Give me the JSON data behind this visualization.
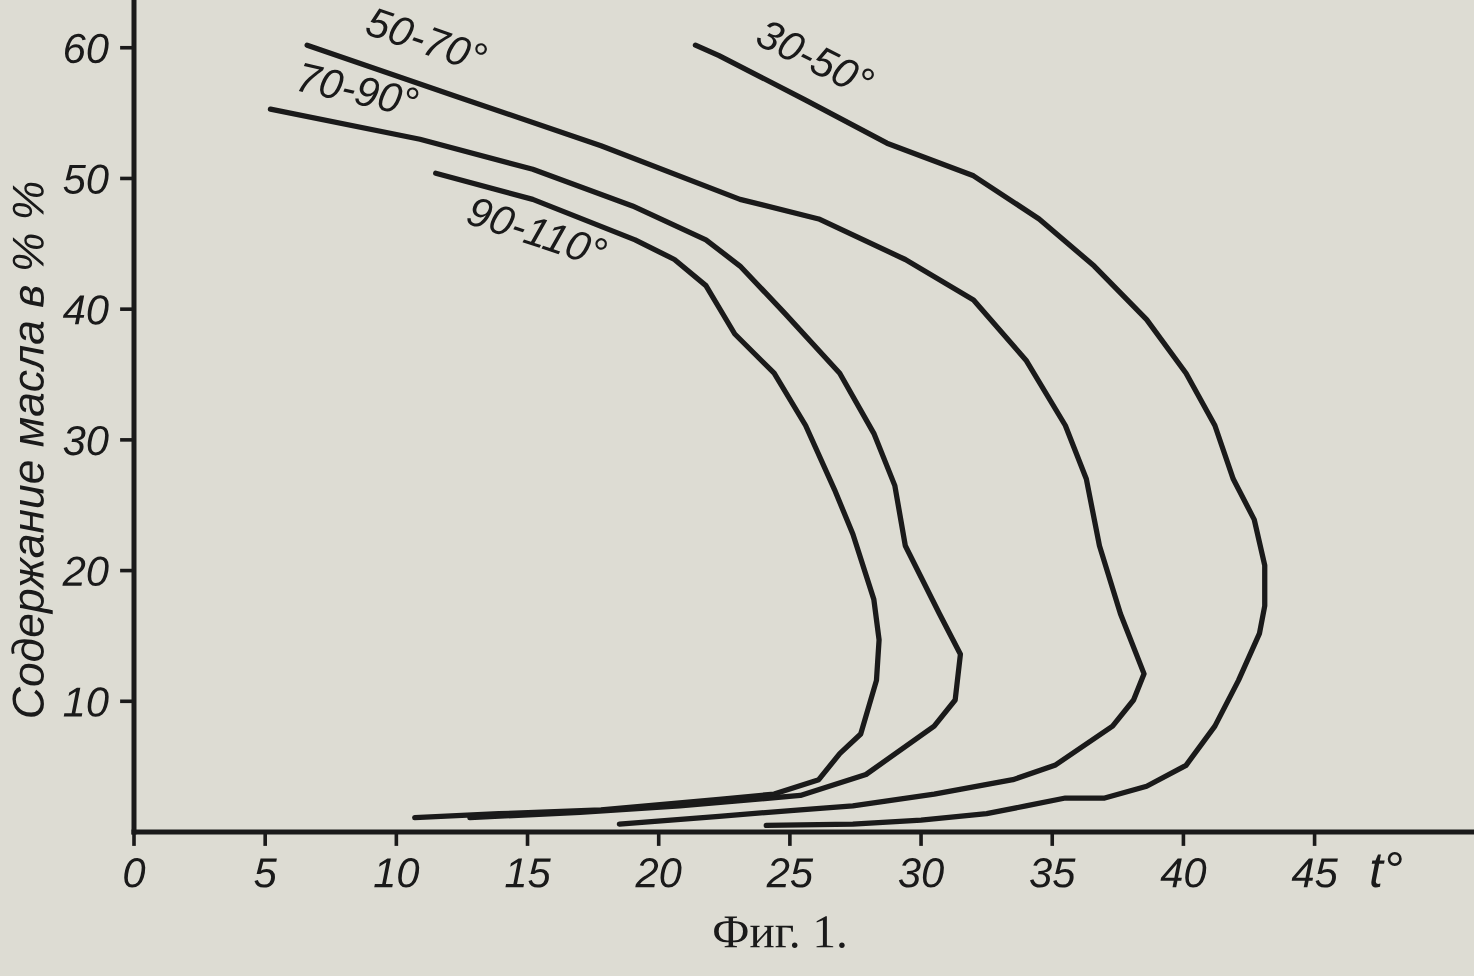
{
  "chart_data": {
    "type": "line",
    "xlabel": "t°",
    "ylabel": "Содержание масла в % %",
    "annotations": [
      "Фиг. 1."
    ],
    "xlim": [
      0,
      51
    ],
    "ylim": [
      0,
      63.5
    ],
    "xticks": [
      0,
      5,
      10,
      15,
      20,
      25,
      30,
      35,
      40,
      45
    ],
    "yticks": [
      10,
      20,
      30,
      40,
      50,
      60
    ],
    "line_style": "solid",
    "series": [
      {
        "name": "30-50°",
        "color": "#1a1a1a",
        "x": [
          21.4,
          22.3,
          25.6,
          28.7,
          32.0,
          34.5,
          36.6,
          38.6,
          40.1,
          41.2,
          41.9,
          42.7,
          43.1,
          43.1,
          42.9,
          42.1,
          41.2,
          40.1,
          38.6,
          37.0,
          35.5,
          34.0,
          32.5,
          30.0,
          27.4,
          24.1
        ],
        "values": [
          60.2,
          59.4,
          56.0,
          52.7,
          50.2,
          46.9,
          43.3,
          39.2,
          35.1,
          31.1,
          27.0,
          23.9,
          20.4,
          17.3,
          15.2,
          11.6,
          8.1,
          5.1,
          3.5,
          2.6,
          2.6,
          2.0,
          1.4,
          0.9,
          0.6,
          0.5
        ]
      },
      {
        "name": "50-70°",
        "color": "#1a1a1a",
        "x": [
          6.6,
          12.4,
          17.8,
          23.1,
          26.1,
          29.4,
          32.0,
          34.0,
          35.5,
          36.3,
          36.8,
          37.6,
          38.5,
          38.1,
          37.3,
          35.1,
          33.5,
          30.5,
          27.4,
          25.4,
          22.3,
          18.5
        ],
        "values": [
          60.2,
          56.2,
          52.5,
          48.4,
          46.9,
          43.8,
          40.7,
          36.1,
          31.1,
          27.0,
          21.9,
          16.7,
          12.1,
          10.1,
          8.1,
          5.1,
          4.0,
          2.9,
          2.0,
          1.7,
          1.2,
          0.6
        ]
      },
      {
        "name": "70-90°",
        "color": "#1a1a1a",
        "x": [
          5.2,
          10.9,
          15.2,
          19.0,
          21.8,
          23.1,
          24.8,
          26.9,
          28.2,
          29.0,
          29.4,
          30.7,
          31.5,
          31.3,
          30.5,
          27.9,
          25.4,
          20.8,
          17.0,
          12.8
        ],
        "values": [
          55.3,
          53.0,
          50.7,
          47.9,
          45.3,
          43.3,
          39.7,
          35.1,
          30.5,
          26.5,
          21.9,
          16.7,
          13.6,
          10.1,
          8.1,
          4.4,
          2.8,
          2.0,
          1.5,
          1.1
        ]
      },
      {
        "name": "90-110°",
        "color": "#1a1a1a",
        "x": [
          11.5,
          15.2,
          19.1,
          20.6,
          21.8,
          22.9,
          24.4,
          25.6,
          26.7,
          27.4,
          28.2,
          28.4,
          28.3,
          27.7,
          26.9,
          26.1,
          24.4,
          22.3,
          17.8,
          13.9,
          10.7
        ],
        "values": [
          50.4,
          48.4,
          45.3,
          43.8,
          41.8,
          38.1,
          35.1,
          31.1,
          26.2,
          22.8,
          17.8,
          14.7,
          11.6,
          7.5,
          6.0,
          4.0,
          2.9,
          2.5,
          1.7,
          1.4,
          1.1
        ]
      }
    ]
  }
}
